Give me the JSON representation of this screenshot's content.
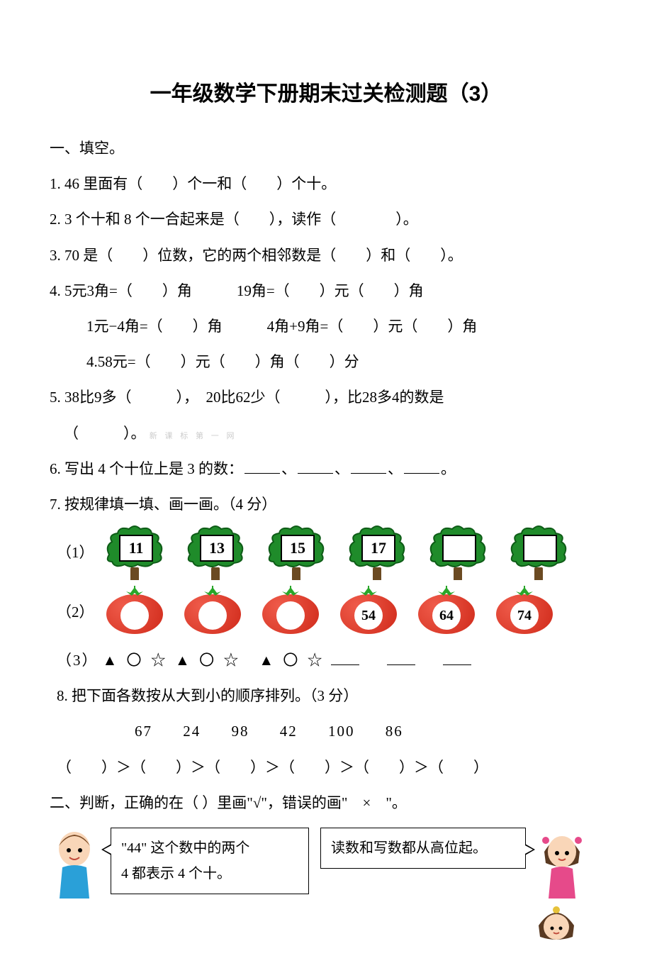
{
  "title": "一年级数学下册期末过关检测题（3）",
  "section1": {
    "heading": "一、填空。",
    "q1": "1. 46 里面有（　　）个一和（　　）个十。",
    "q2": "2. 3 个十和 8 个一合起来是（　　），读作（　　　　）。",
    "q3": "3. 70 是（　　）位数，它的两个相邻数是（　　）和（　　）。",
    "q4a": "4. 5元3角=（　　）角　　　19角=（　　）元（　　）角",
    "q4b": "1元−4角=（　　）角　　　4角+9角=（　　）元（　　）角",
    "q4c": "4.58元=（　　）元（　　）角（　　）分",
    "q5a": "5. 38比9多（　　　），　20比62少（　　　），比28多4的数是",
    "q5b": "（　　　）。",
    "watermark": "新 课 标 第 一 网",
    "q6_prefix": "6. 写出 4 个十位上是 3 的数：",
    "q6_suffix": "。",
    "q7": "7. 按规律填一填、画一画。（4 分）",
    "pattern1_label": "（1）",
    "pattern1_values": [
      "11",
      "13",
      "15",
      "17",
      "",
      ""
    ],
    "pattern2_label": "（2）",
    "pattern2_values": [
      "",
      "",
      "",
      "54",
      "64",
      "74"
    ],
    "pattern3_label": "（3）",
    "pattern3_seq": "▲ 〇 ☆ ▲ 〇 ☆　▲ 〇 ☆",
    "q8": "8. 把下面各数按从大到小的顺序排列。（3 分）",
    "q8_numbers": [
      "67",
      "24",
      "98",
      "42",
      "100",
      "86"
    ],
    "q8_compare": "（　　）＞（　　）＞（　　）＞（　　）＞（　　）＞（　　）"
  },
  "section2": {
    "heading": "二、判断，正确的在（ ）里画\"√\"，错误的画\"　×　\"。",
    "bubble1_line1": "\"44\" 这个数中的两个",
    "bubble1_line2": "4 都表示 4 个十。",
    "bubble2": "读数和写数都从高位起。"
  },
  "colors": {
    "tree_crown": "#1f8b2a",
    "tree_crown_dark": "#0e5c17",
    "tree_trunk": "#6b4a22",
    "tomato_light": "#ef5b4a",
    "tomato_dark": "#d02a1a",
    "leaf_green": "#2aa62a",
    "skin": "#f9d6b8",
    "boy_hair": "#7a4a24",
    "girl_hair": "#5a3a22",
    "boy_shirt": "#2aa0d8",
    "girl_shirt": "#e64a8a"
  }
}
